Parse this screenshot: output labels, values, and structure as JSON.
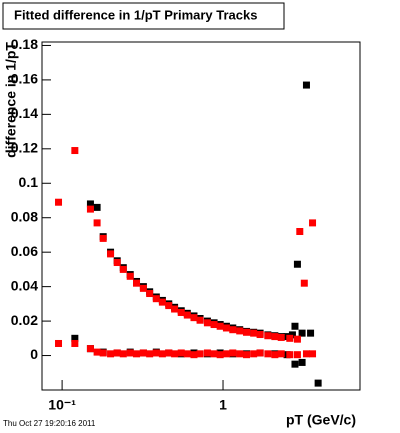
{
  "chart_data": {
    "type": "scatter",
    "title": "Fitted difference in 1/pT  Primary Tracks",
    "xlabel": "pT (GeV/c)",
    "ylabel": "difference in 1/pT",
    "timestamp": "Thu Oct 27 19:20:16 2011",
    "xscale": "log",
    "xlim": [
      0.075,
      7.1
    ],
    "ylim": [
      -0.02,
      0.182
    ],
    "xticks": [
      {
        "value": 0.1,
        "label": "10⁻¹"
      },
      1
    ],
    "yticks": [
      0,
      0.02,
      0.04,
      0.06,
      0.08,
      0.1,
      0.12,
      0.14,
      0.16,
      0.18
    ],
    "series": [
      {
        "color": "#000000",
        "x": [
          0.15,
          0.165,
          0.18,
          0.2,
          0.22,
          0.24,
          0.265,
          0.29,
          0.32,
          0.35,
          0.385,
          0.42,
          0.46,
          0.5,
          0.55,
          0.6,
          0.66,
          0.72,
          0.8,
          0.88,
          0.96,
          1.05,
          1.15,
          1.27,
          1.4,
          1.55,
          1.7,
          1.9,
          2.1,
          2.3,
          2.5,
          2.7,
          2.8,
          2.9,
          3.1,
          3.3
        ],
        "values": [
          0.088,
          0.086,
          0.069,
          0.06,
          0.055,
          0.051,
          0.047,
          0.043,
          0.04,
          0.037,
          0.034,
          0.032,
          0.03,
          0.028,
          0.026,
          0.0245,
          0.023,
          0.0215,
          0.02,
          0.019,
          0.018,
          0.017,
          0.016,
          0.015,
          0.014,
          0.0135,
          0.013,
          0.012,
          0.0115,
          0.011,
          0.011,
          0.012,
          0.017,
          0.053,
          0.013,
          0.157
        ]
      },
      {
        "color": "#000000",
        "x": [
          0.12,
          0.15,
          0.18,
          0.22,
          0.265,
          0.32,
          0.385,
          0.46,
          0.55,
          0.66,
          0.8,
          0.96,
          1.15,
          1.4,
          1.7,
          2.1,
          2.5,
          2.8,
          3.1,
          3.5,
          3.9
        ],
        "values": [
          0.01,
          0.004,
          0.002,
          0.0015,
          0.002,
          0.0015,
          0.002,
          0.0015,
          0.001,
          0.0015,
          0.001,
          0.0015,
          0.001,
          0.001,
          0.0015,
          0.001,
          0.0005,
          -0.005,
          -0.004,
          0.013,
          -0.016
        ]
      },
      {
        "color": "#ff0000",
        "x": [
          0.095,
          0.12,
          0.15,
          0.165,
          0.18,
          0.2,
          0.22,
          0.24,
          0.265,
          0.29,
          0.32,
          0.35,
          0.385,
          0.42,
          0.46,
          0.5,
          0.55,
          0.6,
          0.66,
          0.72,
          0.8,
          0.88,
          0.96,
          1.05,
          1.15,
          1.27,
          1.4,
          1.55,
          1.7,
          1.9,
          2.1,
          2.3,
          2.6,
          2.9,
          3.0,
          3.2,
          3.6
        ],
        "values": [
          0.089,
          0.119,
          0.085,
          0.077,
          0.068,
          0.059,
          0.054,
          0.05,
          0.046,
          0.042,
          0.039,
          0.036,
          0.033,
          0.031,
          0.029,
          0.027,
          0.025,
          0.0235,
          0.022,
          0.0205,
          0.019,
          0.018,
          0.017,
          0.016,
          0.015,
          0.0143,
          0.0135,
          0.013,
          0.0122,
          0.0115,
          0.011,
          0.0105,
          0.01,
          0.0095,
          0.072,
          0.042,
          0.077
        ]
      },
      {
        "color": "#ff0000",
        "x": [
          0.095,
          0.12,
          0.15,
          0.165,
          0.18,
          0.2,
          0.22,
          0.24,
          0.265,
          0.29,
          0.32,
          0.35,
          0.385,
          0.42,
          0.46,
          0.5,
          0.55,
          0.6,
          0.66,
          0.72,
          0.8,
          0.88,
          0.96,
          1.05,
          1.15,
          1.27,
          1.4,
          1.55,
          1.7,
          1.9,
          2.1,
          2.3,
          2.6,
          2.9,
          3.3,
          3.6
        ],
        "values": [
          0.007,
          0.007,
          0.004,
          0.002,
          0.0015,
          0.001,
          0.0015,
          0.001,
          0.0015,
          0.001,
          0.0015,
          0.001,
          0.0015,
          0.001,
          0.0015,
          0.001,
          0.0015,
          0.001,
          0.0005,
          0.001,
          0.0015,
          0.001,
          0.0005,
          0.001,
          0.0015,
          0.001,
          0.0005,
          0.001,
          0.0015,
          0.001,
          0.0005,
          0.001,
          0.0005,
          0.0005,
          0.001,
          0.001
        ]
      }
    ]
  }
}
